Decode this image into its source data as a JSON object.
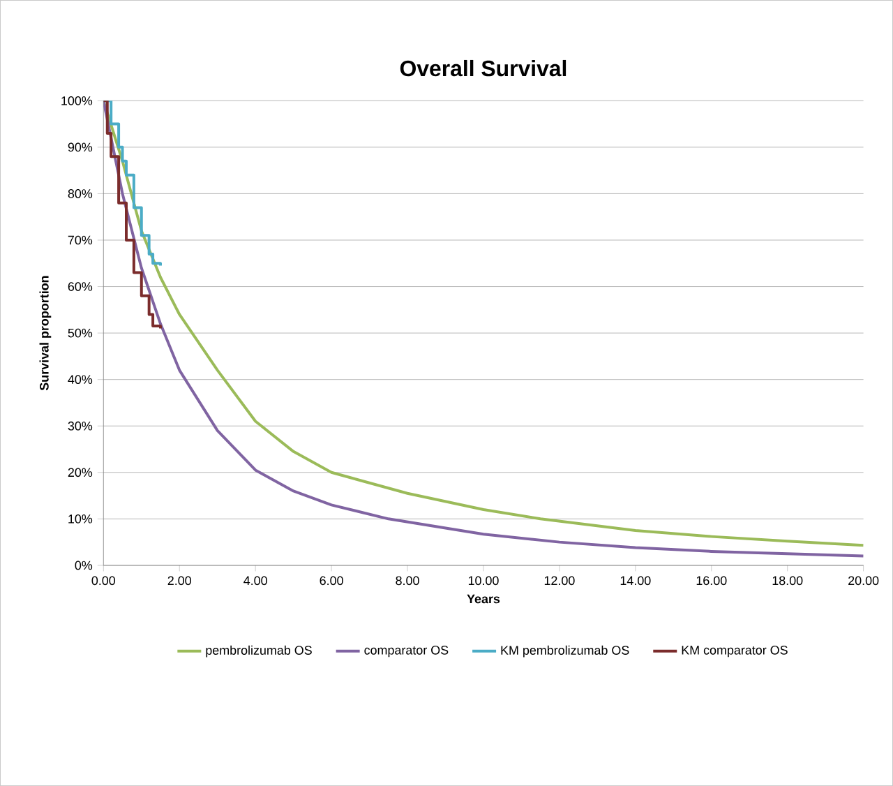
{
  "chart_data": {
    "type": "line",
    "title": "Overall Survival",
    "xlabel": "Years",
    "ylabel": "Survival proportion",
    "xlim": [
      0,
      20
    ],
    "ylim": [
      0,
      1
    ],
    "xticks": [
      {
        "value": 0,
        "label": "0.00"
      },
      {
        "value": 2,
        "label": "2.00"
      },
      {
        "value": 4,
        "label": "4.00"
      },
      {
        "value": 6,
        "label": "6.00"
      },
      {
        "value": 8,
        "label": "8.00"
      },
      {
        "value": 10,
        "label": "10.00"
      },
      {
        "value": 12,
        "label": "12.00"
      },
      {
        "value": 14,
        "label": "14.00"
      },
      {
        "value": 16,
        "label": "16.00"
      },
      {
        "value": 18,
        "label": "18.00"
      },
      {
        "value": 20,
        "label": "20.00"
      }
    ],
    "yticks": [
      {
        "value": 0,
        "label": "0%"
      },
      {
        "value": 0.1,
        "label": "10%"
      },
      {
        "value": 0.2,
        "label": "20%"
      },
      {
        "value": 0.3,
        "label": "30%"
      },
      {
        "value": 0.4,
        "label": "40%"
      },
      {
        "value": 0.5,
        "label": "50%"
      },
      {
        "value": 0.6,
        "label": "60%"
      },
      {
        "value": 0.7,
        "label": "70%"
      },
      {
        "value": 0.8,
        "label": "80%"
      },
      {
        "value": 0.9,
        "label": "90%"
      },
      {
        "value": 1,
        "label": "100%"
      }
    ],
    "grid": "y",
    "legend": "bottom",
    "marker": "none",
    "line_style": "solid",
    "series": [
      {
        "name": "pembrolizumab OS",
        "color": "#9bbb59",
        "x": [
          0,
          0.5,
          1,
          1.5,
          2,
          3,
          4,
          5,
          6,
          8,
          10,
          11.5,
          14,
          16,
          18,
          20
        ],
        "values": [
          1.0,
          0.87,
          0.72,
          0.62,
          0.54,
          0.42,
          0.31,
          0.245,
          0.2,
          0.155,
          0.12,
          0.1,
          0.075,
          0.062,
          0.052,
          0.043
        ]
      },
      {
        "name": "comparator OS",
        "color": "#8064a2",
        "x": [
          0,
          0.5,
          1,
          1.5,
          2,
          3,
          4,
          5,
          6,
          7.5,
          10,
          12,
          14,
          16,
          18,
          20
        ],
        "values": [
          1.0,
          0.8,
          0.64,
          0.52,
          0.42,
          0.29,
          0.205,
          0.16,
          0.13,
          0.1,
          0.067,
          0.05,
          0.038,
          0.03,
          0.025,
          0.02
        ]
      },
      {
        "name": "KM pembrolizumab OS",
        "color": "#4bacc6",
        "type": "step",
        "x": [
          0,
          0.2,
          0.4,
          0.5,
          0.6,
          0.8,
          1.0,
          1.2,
          1.3,
          1.5
        ],
        "values": [
          1.0,
          0.95,
          0.9,
          0.87,
          0.84,
          0.77,
          0.71,
          0.67,
          0.65,
          0.645
        ]
      },
      {
        "name": "KM comparator OS",
        "color": "#7b2c2c",
        "type": "step",
        "x": [
          0,
          0.1,
          0.2,
          0.4,
          0.6,
          0.8,
          1.0,
          1.2,
          1.3,
          1.5
        ],
        "values": [
          1.0,
          0.93,
          0.88,
          0.78,
          0.7,
          0.63,
          0.58,
          0.54,
          0.515,
          0.51
        ]
      }
    ]
  }
}
